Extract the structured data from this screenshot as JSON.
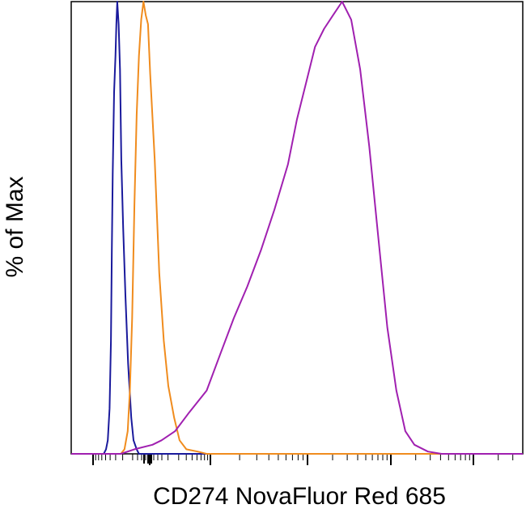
{
  "chart_data": {
    "type": "line",
    "title": "",
    "xlabel": "CD274 NovaFluor Red 685",
    "ylabel": "% of Max",
    "xlim": [
      0,
      1000
    ],
    "ylim": [
      0,
      100
    ],
    "x_scale": "biexponential",
    "x_tick_labels": [],
    "y_tick_labels": [],
    "grid": false,
    "legend": "none",
    "series": [
      {
        "color": "#1a1a9c",
        "x": [
          0,
          72,
          77,
          81,
          85,
          88,
          90,
          92,
          95,
          98,
          100,
          102,
          105,
          108,
          111,
          115,
          120,
          126,
          133,
          138,
          145,
          150,
          560,
          1000
        ],
        "y": [
          0,
          0,
          1,
          3,
          10,
          25,
          45,
          62,
          80,
          88,
          95,
          100,
          95,
          85,
          65,
          50,
          35,
          20,
          8,
          3,
          1,
          0,
          0,
          0
        ]
      },
      {
        "color": "#f08c1e",
        "x": [
          0,
          110,
          118,
          125,
          130,
          135,
          140,
          145,
          150,
          155,
          160,
          165,
          170,
          175,
          185,
          195,
          205,
          215,
          228,
          240,
          255,
          280,
          300,
          560,
          1000
        ],
        "y": [
          0,
          0,
          1,
          5,
          14,
          30,
          55,
          75,
          88,
          96,
          100,
          97,
          95,
          84,
          65,
          40,
          25,
          15,
          8,
          3,
          1,
          0.5,
          0,
          0,
          0
        ]
      },
      {
        "color": "#a020b0",
        "x": [
          0,
          110,
          140,
          180,
          200,
          230,
          260,
          300,
          330,
          360,
          390,
          420,
          450,
          480,
          500,
          520,
          540,
          560,
          580,
          600,
          620,
          640,
          660,
          680,
          700,
          720,
          740,
          760,
          790,
          820,
          1000
        ],
        "y": [
          0,
          0,
          1,
          2,
          3,
          5,
          9,
          14,
          22,
          30,
          37,
          45,
          54,
          64,
          74,
          82,
          90,
          94,
          97,
          100,
          96,
          85,
          68,
          48,
          28,
          14,
          5,
          2,
          0.5,
          0,
          0
        ]
      }
    ]
  }
}
